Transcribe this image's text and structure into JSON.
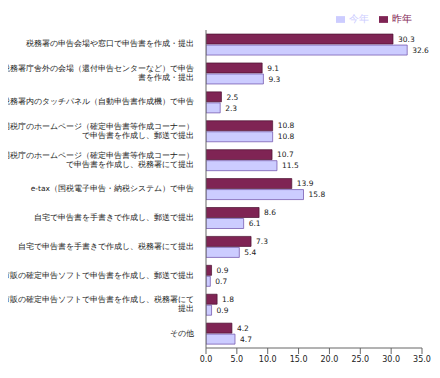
{
  "chart_data": {
    "type": "bar",
    "orientation": "horizontal",
    "categories": [
      "税務署の申告会場や窓口で申告書を作成・提出",
      "税務署庁舎外の会場（還付申告センターなど）で申告書を作成・提出",
      "税務署内のタッチパネル（自動申告書作成機）で申告",
      "国税庁のホームページ（確定申告書等作成コーナー）で申告書を作成し、郵送で提出",
      "国税庁のホームページ（確定申告書等作成コーナー）で申告書を作成し、税務署にて提出",
      "e-tax（国税電子申告・納税システム）で申告",
      "自宅で申告書を手書きで作成し、郵送で提出",
      "自宅で申告書を手書きで作成し、税務署にて提出",
      "市販の確定申告ソフトで申告書を作成し、郵送で提出",
      "市販の確定申告ソフトで申告書を作成し、税務署にて提出",
      "その他"
    ],
    "series": [
      {
        "name": "昨年",
        "color": "#7f2454",
        "values": [
          30.3,
          9.1,
          2.5,
          10.8,
          10.7,
          13.9,
          8.6,
          7.3,
          0.9,
          1.8,
          4.2
        ]
      },
      {
        "name": "今年",
        "color": "#ccccff",
        "values": [
          32.6,
          9.3,
          2.3,
          10.8,
          11.5,
          15.8,
          6.1,
          5.4,
          0.7,
          0.9,
          4.7
        ]
      }
    ],
    "xlim": [
      0,
      35
    ],
    "xticks": [
      {
        "value": 0,
        "label": "0.0"
      },
      {
        "value": 5,
        "label": "5.0"
      },
      {
        "value": 10,
        "label": "10.0"
      },
      {
        "value": 15,
        "label": "15.0"
      },
      {
        "value": 20,
        "label": "20.0"
      },
      {
        "value": 25,
        "label": "25.0"
      },
      {
        "value": 30,
        "label": "30.0"
      },
      {
        "value": 35,
        "label": "35.0"
      }
    ],
    "data_labels": true,
    "legend": "upper right",
    "grid": false
  }
}
